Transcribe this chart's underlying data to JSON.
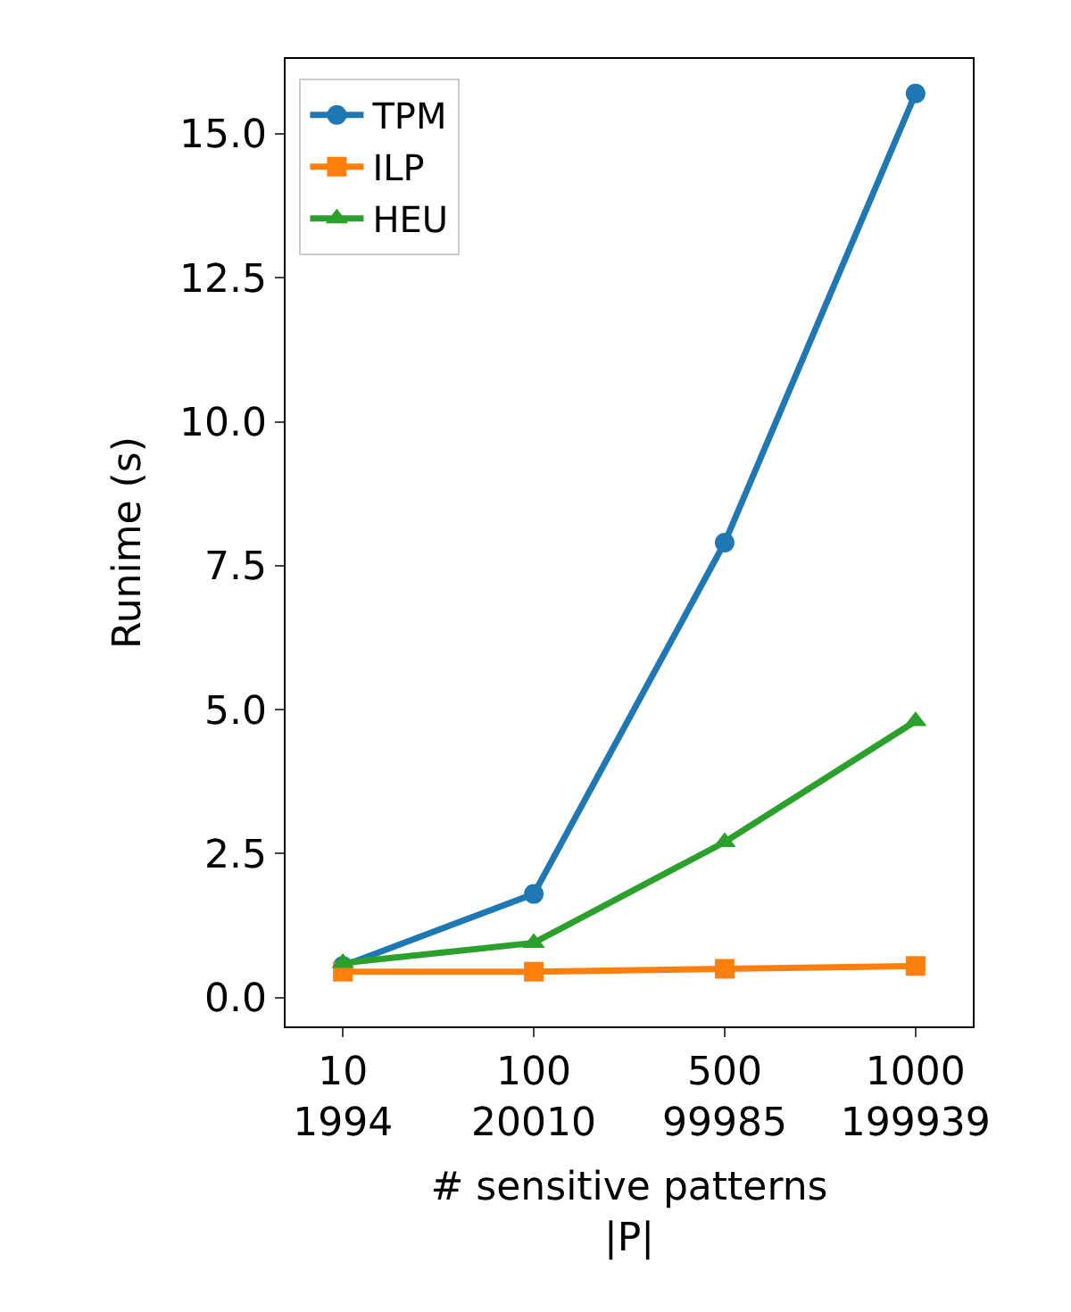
{
  "chart_data": {
    "type": "line",
    "xlabel": "# sensitive patterns\n|P|",
    "ylabel": "Runime (s)",
    "categories": [
      "10\n1994",
      "100\n20010",
      "500\n99985",
      "1000\n199939"
    ],
    "series": [
      {
        "name": "TPM",
        "color": "#1f77b4",
        "marker": "circle",
        "values": [
          0.55,
          1.8,
          7.9,
          15.7
        ]
      },
      {
        "name": "ILP",
        "color": "#ff7f0e",
        "marker": "square",
        "values": [
          0.45,
          0.45,
          0.5,
          0.55
        ]
      },
      {
        "name": "HEU",
        "color": "#2ca02c",
        "marker": "triangle",
        "values": [
          0.6,
          0.95,
          2.7,
          4.8
        ]
      }
    ],
    "ylim": [
      -0.5,
      16.3
    ],
    "yticks": [
      {
        "value": 0,
        "label": "0.0"
      },
      2.5,
      {
        "value": 5,
        "label": "5.0"
      },
      7.5,
      {
        "value": 10,
        "label": "10.0"
      },
      12.5,
      {
        "value": 15,
        "label": "15.0"
      }
    ],
    "legend": "top left",
    "line_style": "solid"
  }
}
